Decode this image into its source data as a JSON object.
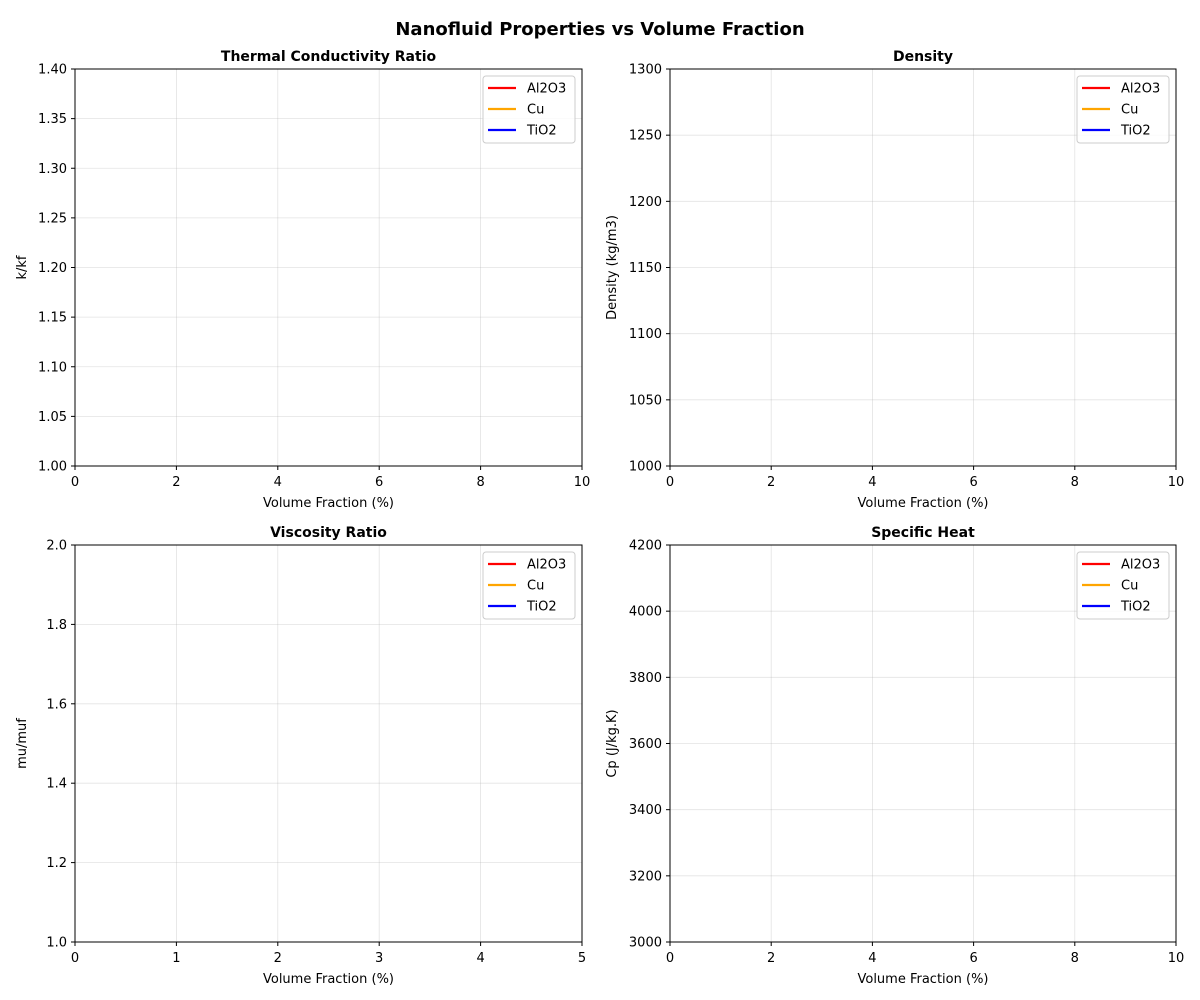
{
  "figure": {
    "title": "Nanofluid Properties vs Volume Fraction"
  },
  "legend_entries": [
    {
      "name": "Al2O3",
      "color": "#ff0000"
    },
    {
      "name": "Cu",
      "color": "#ffa500"
    },
    {
      "name": "TiO2",
      "color": "#0000ff"
    }
  ],
  "chart_data": [
    {
      "type": "line",
      "title": "Thermal Conductivity Ratio",
      "xlabel": "Volume Fraction (%)",
      "ylabel": "k/kf",
      "xlim": [
        0,
        10
      ],
      "ylim": [
        1.0,
        1.4
      ],
      "xticks": [
        "0",
        "2",
        "4",
        "6",
        "8",
        "10"
      ],
      "yticks": [
        "1.00",
        "1.05",
        "1.10",
        "1.15",
        "1.20",
        "1.25",
        "1.30",
        "1.35",
        "1.40"
      ],
      "grid": true,
      "legend": "top-right",
      "series": [
        {
          "name": "Al2O3",
          "color": "#ff0000",
          "x": [],
          "y": []
        },
        {
          "name": "Cu",
          "color": "#ffa500",
          "x": [],
          "y": []
        },
        {
          "name": "TiO2",
          "color": "#0000ff",
          "x": [],
          "y": []
        }
      ]
    },
    {
      "type": "line",
      "title": "Density",
      "xlabel": "Volume Fraction (%)",
      "ylabel": "Density (kg/m3)",
      "xlim": [
        0,
        10
      ],
      "ylim": [
        1000,
        1300
      ],
      "xticks": [
        "0",
        "2",
        "4",
        "6",
        "8",
        "10"
      ],
      "yticks": [
        "1000",
        "1050",
        "1100",
        "1150",
        "1200",
        "1250",
        "1300"
      ],
      "grid": true,
      "legend": "top-right",
      "series": [
        {
          "name": "Al2O3",
          "color": "#ff0000",
          "x": [],
          "y": []
        },
        {
          "name": "Cu",
          "color": "#ffa500",
          "x": [],
          "y": []
        },
        {
          "name": "TiO2",
          "color": "#0000ff",
          "x": [],
          "y": []
        }
      ]
    },
    {
      "type": "line",
      "title": "Viscosity Ratio",
      "xlabel": "Volume Fraction (%)",
      "ylabel": "mu/muf",
      "xlim": [
        0,
        5
      ],
      "ylim": [
        1.0,
        2.0
      ],
      "xticks": [
        "0",
        "1",
        "2",
        "3",
        "4",
        "5"
      ],
      "yticks": [
        "1.0",
        "1.2",
        "1.4",
        "1.6",
        "1.8",
        "2.0"
      ],
      "grid": true,
      "legend": "top-right",
      "series": [
        {
          "name": "Al2O3",
          "color": "#ff0000",
          "x": [],
          "y": []
        },
        {
          "name": "Cu",
          "color": "#ffa500",
          "x": [],
          "y": []
        },
        {
          "name": "TiO2",
          "color": "#0000ff",
          "x": [],
          "y": []
        }
      ]
    },
    {
      "type": "line",
      "title": "Specific Heat",
      "xlabel": "Volume Fraction (%)",
      "ylabel": "Cp (J/kg.K)",
      "xlim": [
        0,
        10
      ],
      "ylim": [
        3000,
        4200
      ],
      "xticks": [
        "0",
        "2",
        "4",
        "6",
        "8",
        "10"
      ],
      "yticks": [
        "3000",
        "3200",
        "3400",
        "3600",
        "3800",
        "4000",
        "4200"
      ],
      "grid": true,
      "legend": "top-right",
      "series": [
        {
          "name": "Al2O3",
          "color": "#ff0000",
          "x": [],
          "y": []
        },
        {
          "name": "Cu",
          "color": "#ffa500",
          "x": [],
          "y": []
        },
        {
          "name": "TiO2",
          "color": "#0000ff",
          "x": [],
          "y": []
        }
      ]
    }
  ]
}
